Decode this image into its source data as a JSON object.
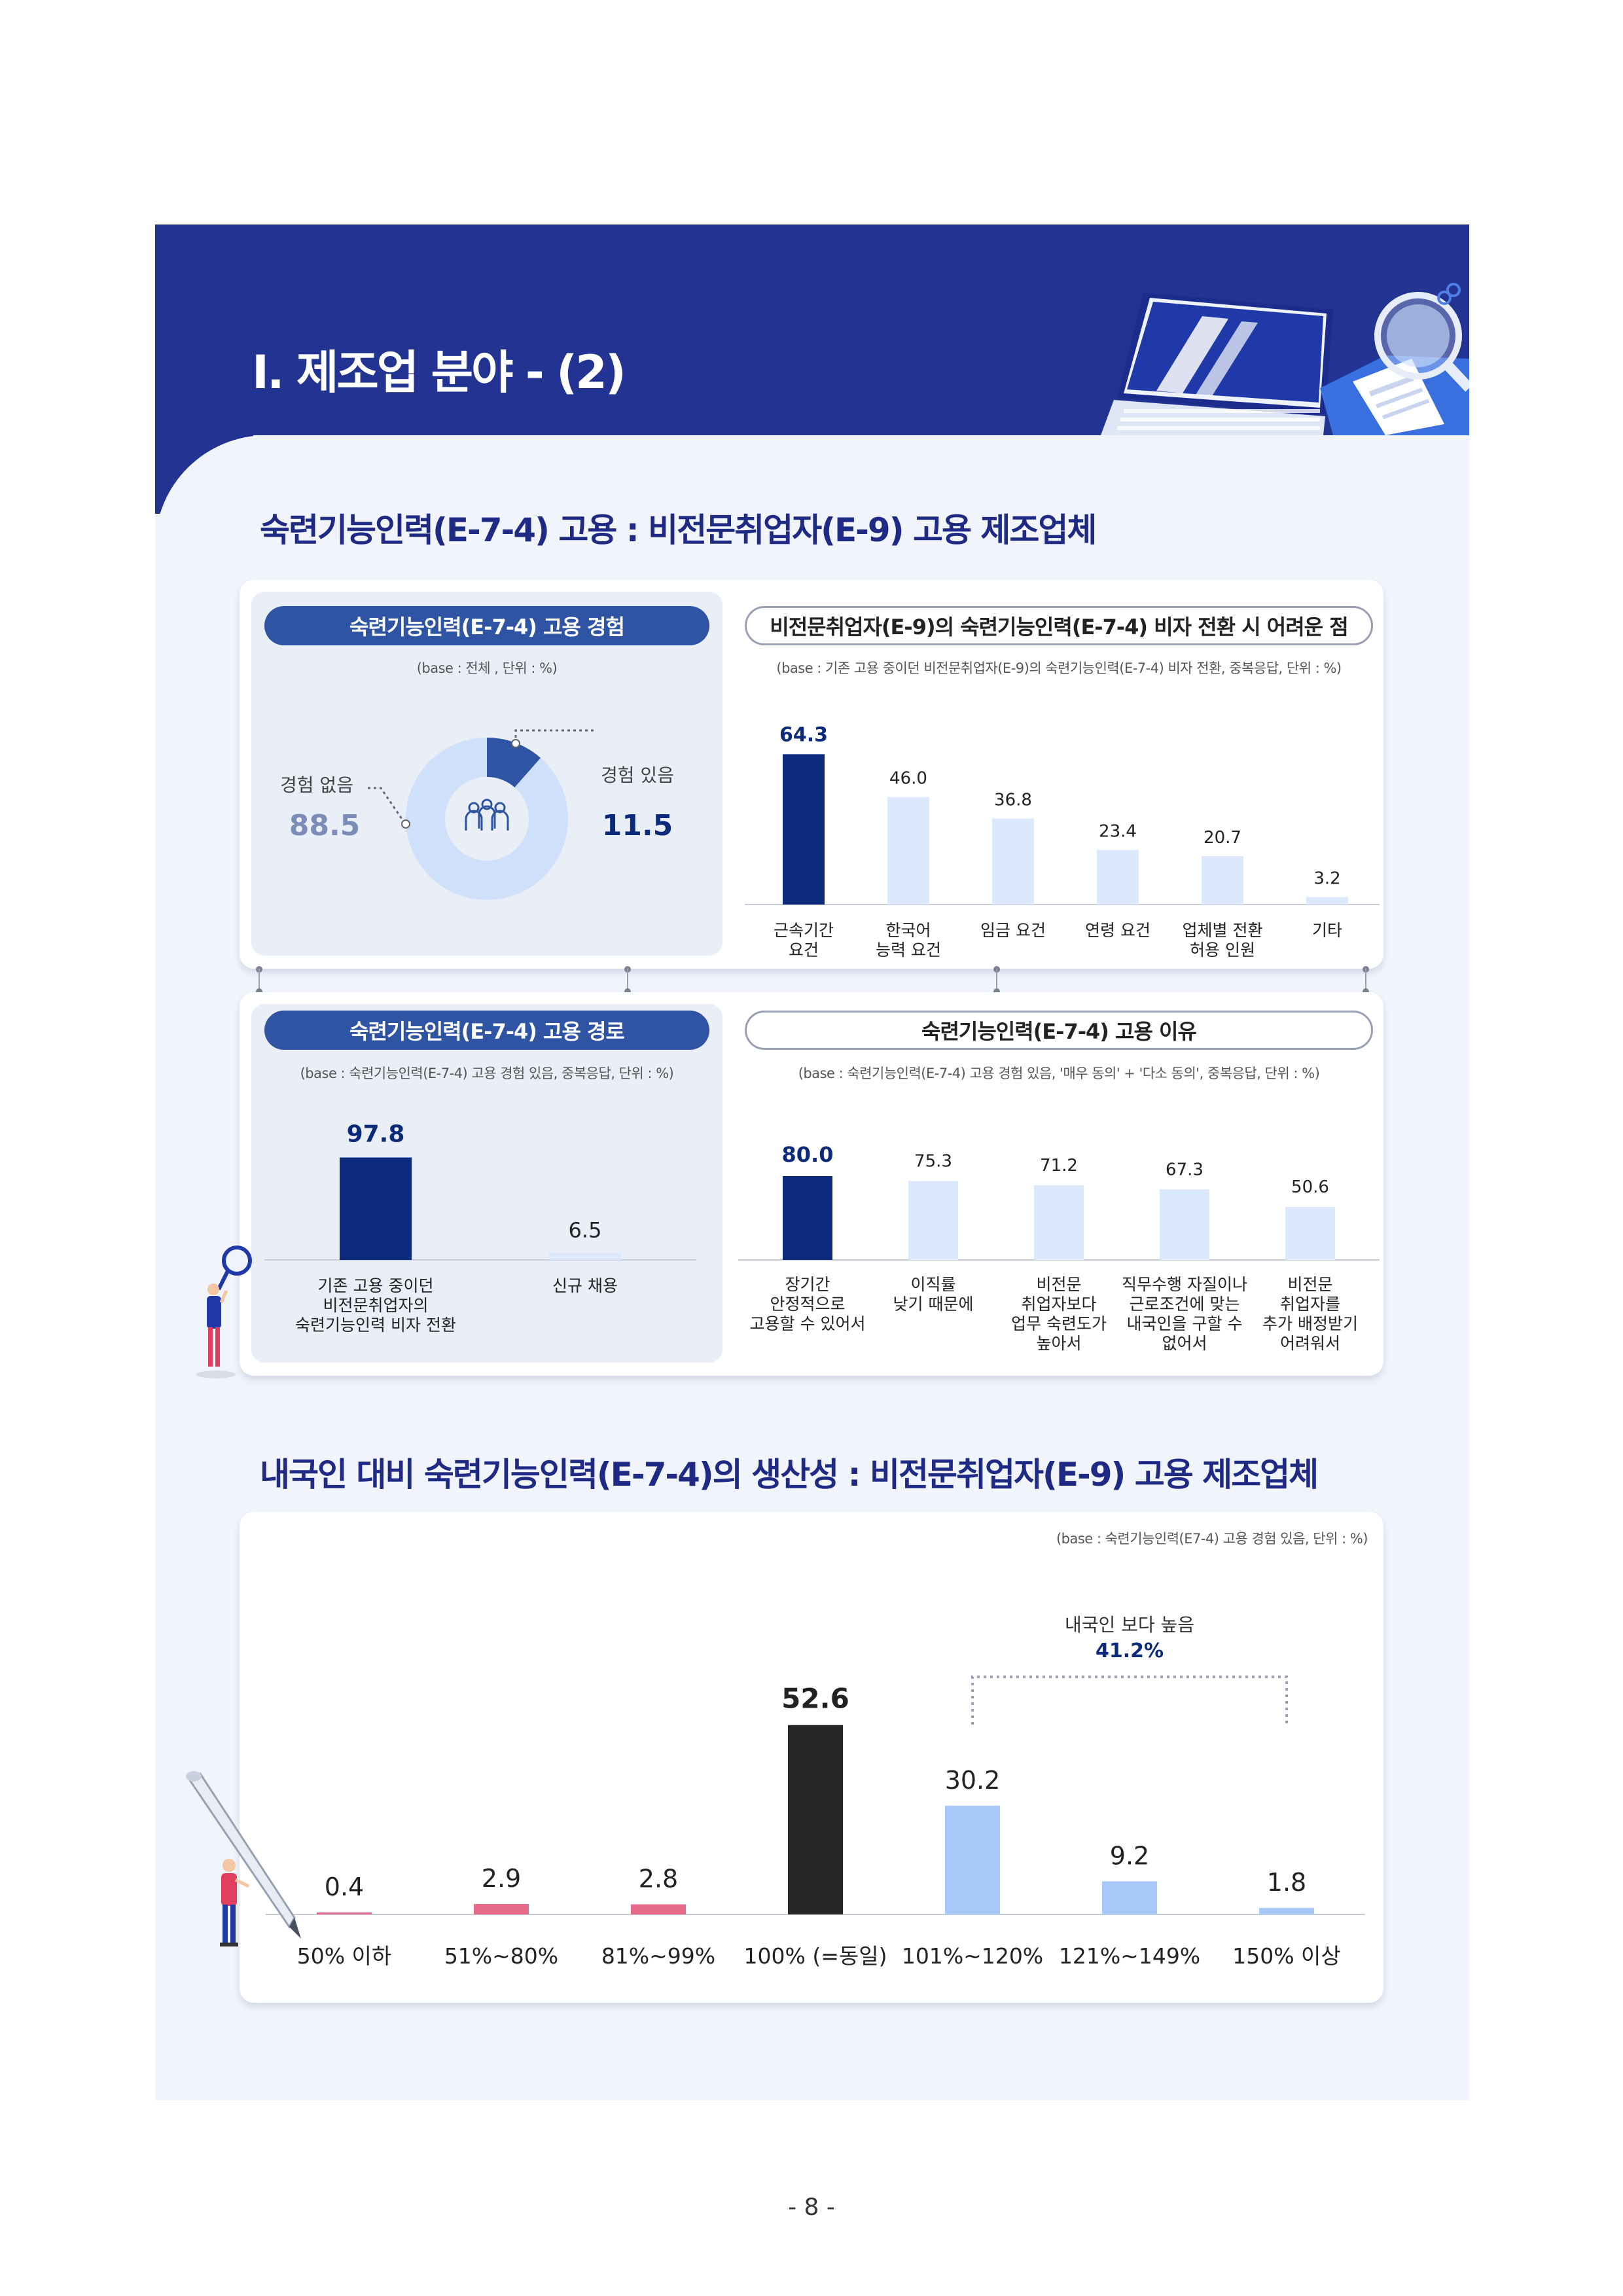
{
  "banner": {
    "title": "Ⅰ. 제조업 분야 - (2)"
  },
  "section1": {
    "title": "숙련기능인력(E-7-4) 고용 : 비전문취업자(E-9) 고용 제조업체"
  },
  "section2": {
    "title": "내국인 대비 숙련기능인력(E-7-4)의 생산성 : 비전문취업자(E-9) 고용 제조업체"
  },
  "page_number": "- 8 -",
  "colors": {
    "navy": "#0c2a7c",
    "light_blue": "#dce8fb",
    "donut_light": "#cfe0fa",
    "donut_dark": "#2e54a3",
    "pink": "#e66a8a",
    "black": "#262626",
    "mid_blue": "#a9c8fa"
  },
  "chart_data": [
    {
      "type": "pie",
      "title": "숙련기능인력(E-7-4) 고용 경험",
      "base": "(base : 전체 , 단위 : %)",
      "categories": [
        "경험 있음",
        "경험 없음"
      ],
      "values": [
        11.5,
        88.5
      ],
      "value_labels": [
        "11.5",
        "88.5"
      ],
      "center_icon": "people-group-icon"
    },
    {
      "type": "bar",
      "title": "비전문취업자(E-9)의 숙련기능인력(E-7-4) 비자 전환 시 어려운 점",
      "base": "(base : 기존 고용 중이던 비전문취업자(E-9)의 숙련기능인력(E-7-4) 비자 전환, 중복응답, 단위 : %)",
      "categories": [
        "근속기간\n요건",
        "한국어\n능력 요건",
        "임금 요건",
        "연령 요건",
        "업체별 전환\n허용 인원",
        "기타"
      ],
      "values": [
        64.3,
        46.0,
        36.8,
        23.4,
        20.7,
        3.2
      ],
      "value_labels": [
        "64.3",
        "46.0",
        "36.8",
        "23.4",
        "20.7",
        "3.2"
      ],
      "highlight_index": 0,
      "ylim": [
        0,
        70
      ]
    },
    {
      "type": "bar",
      "title": "숙련기능인력(E-7-4) 고용 경로",
      "base": "(base : 숙련기능인력(E-7-4) 고용 경험 있음, 중복응답, 단위 : %)",
      "categories": [
        "기존 고용 중이던\n비전문취업자의\n숙련기능인력 비자 전환",
        "신규 채용"
      ],
      "values": [
        97.8,
        6.5
      ],
      "value_labels": [
        "97.8",
        "6.5"
      ],
      "highlight_index": 0,
      "ylim": [
        0,
        100
      ]
    },
    {
      "type": "bar",
      "title": "숙련기능인력(E-7-4) 고용 이유",
      "base": "(base : 숙련기능인력(E-7-4) 고용 경험 있음, '매우 동의' + '다소 동의', 중복응답, 단위 : %)",
      "categories": [
        "장기간\n안정적으로\n고용할 수 있어서",
        "이직률\n낮기 때문에",
        "비전문\n취업자보다\n업무 숙련도가\n높아서",
        "직무수행 자질이나\n근로조건에 맞는\n내국인을 구할 수\n없어서",
        "비전문\n취업자를\n추가 배정받기\n어려워서"
      ],
      "values": [
        80.0,
        75.3,
        71.2,
        67.3,
        50.6
      ],
      "value_labels": [
        "80.0",
        "75.3",
        "71.2",
        "67.3",
        "50.6"
      ],
      "highlight_index": 0,
      "ylim": [
        0,
        100
      ]
    },
    {
      "type": "bar",
      "title": "",
      "base": "(base : 숙련기능인력(E7-4) 고용 경험 있음, 단위 : %)",
      "categories": [
        "50% 이하",
        "51%~80%",
        "81%~99%",
        "100% (=동일)",
        "101%~120%",
        "121%~149%",
        "150% 이상"
      ],
      "values": [
        0.4,
        2.9,
        2.8,
        52.6,
        30.2,
        9.2,
        1.8
      ],
      "value_labels": [
        "0.4",
        "2.9",
        "2.8",
        "52.6",
        "30.2",
        "9.2",
        "1.8"
      ],
      "bar_colors": [
        "#e66a8a",
        "#e66a8a",
        "#e66a8a",
        "#262626",
        "#a9c8fa",
        "#a9c8fa",
        "#a9c8fa"
      ],
      "ylim": [
        0,
        60
      ],
      "annotation": {
        "label": "내국인 보다 높음",
        "value": "41.2%",
        "span": [
          "101%~120%",
          "150% 이상"
        ]
      }
    }
  ]
}
